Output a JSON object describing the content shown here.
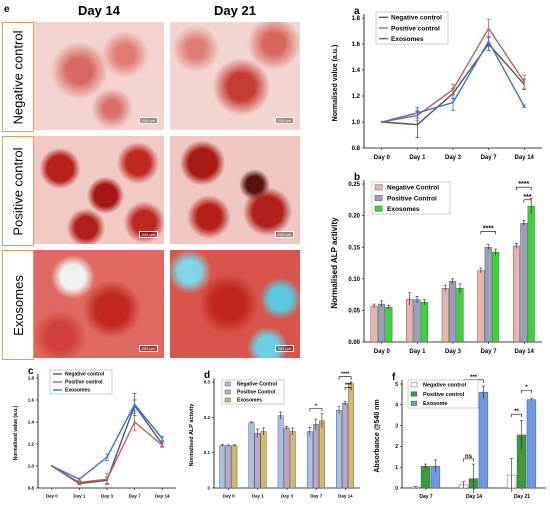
{
  "panel_e": {
    "letter": "e",
    "columns": [
      "Day 14",
      "Day 21"
    ],
    "rows": [
      "Negative control",
      "Positive control",
      "Exosomes"
    ],
    "scale_label": "200 µm"
  },
  "chart_data": [
    {
      "id": "a",
      "type": "line",
      "letter": "a",
      "ylabel": "Normalised value (a.u.)",
      "xlabel": "",
      "categories": [
        "Day 0",
        "Day 1",
        "Day 3",
        "Day 7",
        "Day 14"
      ],
      "ylim": [
        0.8,
        1.8
      ],
      "yticks": [
        0.8,
        1.0,
        1.2,
        1.4,
        1.6,
        1.8
      ],
      "legend_position": "top-left",
      "grid": false,
      "series": [
        {
          "name": "Negative control",
          "color": "#555555",
          "values": [
            1.0,
            0.98,
            1.22,
            1.6,
            1.29
          ],
          "errors": [
            0.0,
            0.1,
            0.04,
            0.05,
            0.04
          ]
        },
        {
          "name": "Positive control",
          "color": "#c0605a",
          "values": [
            1.0,
            1.05,
            1.25,
            1.72,
            1.31
          ],
          "errors": [
            0.0,
            0.04,
            0.04,
            0.07,
            0.05
          ]
        },
        {
          "name": "Exosomes",
          "color": "#3a6fd8",
          "values": [
            1.0,
            1.07,
            1.15,
            1.62,
            1.12
          ],
          "errors": [
            0.0,
            0.04,
            0.06,
            0.04,
            0.01
          ]
        }
      ]
    },
    {
      "id": "b",
      "type": "bar",
      "letter": "b",
      "ylabel": "Normalised ALP activity",
      "xlabel": "",
      "categories": [
        "Day 0",
        "Day 1",
        "Day 3",
        "Day 7",
        "Day 14"
      ],
      "ylim": [
        0,
        0.25
      ],
      "yticks": [
        0.0,
        0.05,
        0.1,
        0.15,
        0.2,
        0.25
      ],
      "tick_labels": [
        "0.00",
        "0.05",
        "0.10",
        "0.15",
        "0.20",
        "0.25"
      ],
      "legend_position": "top-left",
      "grid": false,
      "series": [
        {
          "name": "Negative Control",
          "color": "#e6b3ad",
          "values": [
            0.057,
            0.068,
            0.085,
            0.113,
            0.152
          ],
          "errors": [
            0.003,
            0.01,
            0.005,
            0.004,
            0.004
          ]
        },
        {
          "name": "Positive Control",
          "color": "#9a9fb8",
          "values": [
            0.06,
            0.067,
            0.096,
            0.15,
            0.188
          ],
          "errors": [
            0.005,
            0.005,
            0.004,
            0.004,
            0.004
          ]
        },
        {
          "name": "Exosomes",
          "color": "#3cd23c",
          "values": [
            0.055,
            0.063,
            0.085,
            0.142,
            0.215
          ],
          "errors": [
            0.003,
            0.004,
            0.007,
            0.005,
            0.012
          ]
        }
      ],
      "significance": [
        {
          "cat": 3,
          "from": 0,
          "to": 2,
          "label": "****",
          "y": 0.175
        },
        {
          "cat": 4,
          "from": 0,
          "to": 2,
          "label": "****",
          "y": 0.245
        },
        {
          "cat": 4,
          "from": 1,
          "to": 2,
          "label": "***",
          "y": 0.225
        }
      ]
    },
    {
      "id": "c",
      "type": "line",
      "letter": "c",
      "ylabel": "Normalised value (a.u.)",
      "xlabel": "",
      "categories": [
        "Day 0",
        "Day 1",
        "Day 3",
        "Day 7",
        "Day 14"
      ],
      "ylim": [
        0.8,
        1.8
      ],
      "yticks": [
        0.8,
        1.0,
        1.2,
        1.4,
        1.6,
        1.8
      ],
      "legend_position": "top-left",
      "grid": false,
      "series": [
        {
          "name": "Negative control",
          "color": "#555555",
          "values": [
            1.0,
            0.84,
            0.87,
            1.55,
            1.2
          ],
          "errors": [
            0.0,
            0.01,
            0.03,
            0.05,
            0.02
          ]
        },
        {
          "name": "Positive control",
          "color": "#c0605a",
          "values": [
            1.0,
            0.85,
            0.88,
            1.4,
            1.19
          ],
          "errors": [
            0.0,
            0.01,
            0.05,
            0.08,
            0.02
          ]
        },
        {
          "name": "Exosomes",
          "color": "#3a6fd8",
          "values": [
            1.0,
            0.88,
            1.08,
            1.56,
            1.25
          ],
          "errors": [
            0.0,
            0.01,
            0.03,
            0.1,
            0.02
          ]
        }
      ]
    },
    {
      "id": "d",
      "type": "bar",
      "letter": "d",
      "ylabel": "Normalised ALP activity",
      "xlabel": "",
      "categories": [
        "Day 0",
        "Day 1",
        "Day 3",
        "Day 7",
        "Day 14"
      ],
      "ylim": [
        0,
        0.3
      ],
      "yticks": [
        0.0,
        0.1,
        0.2,
        0.3
      ],
      "tick_labels": [
        "0",
        "0.1",
        "0.2",
        "0.3"
      ],
      "legend_position": "top-left",
      "grid": false,
      "series": [
        {
          "name": "Negative Control",
          "color": "#a9bfe6",
          "values": [
            0.12,
            0.185,
            0.205,
            0.16,
            0.22
          ],
          "errors": [
            0.003,
            0.002,
            0.01,
            0.012,
            0.01
          ]
        },
        {
          "name": "Positive Control",
          "color": "#b9a9c9",
          "values": [
            0.12,
            0.155,
            0.17,
            0.18,
            0.24
          ],
          "errors": [
            0.002,
            0.012,
            0.005,
            0.015,
            0.005
          ]
        },
        {
          "name": "Exosomes",
          "color": "#d4b870",
          "values": [
            0.12,
            0.16,
            0.16,
            0.19,
            0.295
          ],
          "errors": [
            0.002,
            0.01,
            0.01,
            0.02,
            0.005
          ]
        }
      ],
      "significance": [
        {
          "cat": 3,
          "from": 0,
          "to": 2,
          "label": "*",
          "y": 0.225
        },
        {
          "cat": 4,
          "from": 0,
          "to": 2,
          "label": "****",
          "y": 0.315
        },
        {
          "cat": 4,
          "from": 1,
          "to": 2,
          "label": "***",
          "y": 0.285
        }
      ]
    },
    {
      "id": "f",
      "type": "bar",
      "letter": "f",
      "ylabel": "Absorbance @540 nm",
      "xlabel": "",
      "categories": [
        "Day 7",
        "Day 14",
        "Day 21"
      ],
      "ylim": [
        0,
        5
      ],
      "yticks": [
        0,
        1,
        2,
        3,
        4,
        5
      ],
      "tick_labels": [
        "0",
        "1",
        "2",
        "3",
        "4",
        "5"
      ],
      "legend_position": "top-left",
      "grid": false,
      "series": [
        {
          "name": "Negative control",
          "color": "#ffffff",
          "values": [
            0.05,
            0.15,
            0.62
          ],
          "errors": [
            0.02,
            0.15,
            0.8
          ]
        },
        {
          "name": "Positive control",
          "color": "#3c9a3c",
          "values": [
            1.05,
            0.45,
            2.55
          ],
          "errors": [
            0.1,
            0.7,
            0.7
          ]
        },
        {
          "name": "Exosome",
          "color": "#6e98e6",
          "values": [
            1.05,
            4.6,
            4.25
          ],
          "errors": [
            0.3,
            0.3,
            0.05
          ]
        }
      ],
      "significance": [
        {
          "cat": 1,
          "from": 0,
          "to": 1,
          "label": "ns",
          "y": 1.4
        },
        {
          "cat": 1,
          "from": 0,
          "to": 2,
          "label": "***",
          "y": 5.2
        },
        {
          "cat": 2,
          "from": 0,
          "to": 1,
          "label": "**",
          "y": 3.55
        },
        {
          "cat": 2,
          "from": 1,
          "to": 2,
          "label": "*",
          "y": 4.7
        }
      ]
    }
  ]
}
